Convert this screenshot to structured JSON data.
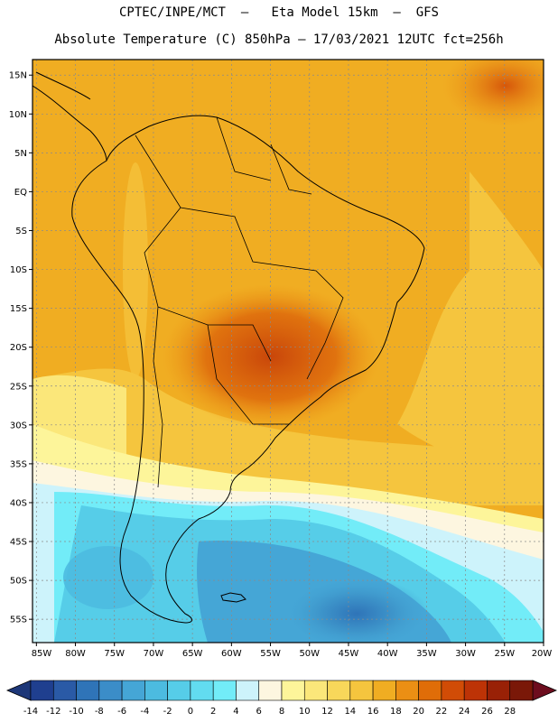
{
  "header": {
    "line1": "CPTEC/INPE/MCT  –   Eta Model 15km  –  GFS",
    "line2": "Absolute Temperature (C) 850hPa – 17/03/2021 12UTC fct=256h"
  },
  "map": {
    "lat_labels": [
      "15N",
      "10N",
      "5N",
      "EQ",
      "5S",
      "10S",
      "15S",
      "20S",
      "25S",
      "30S",
      "35S",
      "40S",
      "45S",
      "50S",
      "55S"
    ],
    "lat_values": [
      15,
      10,
      5,
      0,
      -5,
      -10,
      -15,
      -20,
      -25,
      -30,
      -35,
      -40,
      -45,
      -50,
      -55
    ],
    "lon_labels": [
      "85W",
      "80W",
      "75W",
      "70W",
      "65W",
      "60W",
      "55W",
      "50W",
      "45W",
      "40W",
      "35W",
      "30W",
      "25W",
      "20W"
    ],
    "lon_values": [
      -85,
      -80,
      -75,
      -70,
      -65,
      -60,
      -55,
      -50,
      -45,
      -40,
      -35,
      -30,
      -25,
      -20
    ],
    "lat_range": [
      -58,
      17
    ],
    "lon_range": [
      -85.5,
      -20
    ],
    "region": "South America"
  },
  "colorbar": {
    "labels": [
      "-14",
      "-12",
      "-10",
      "-8",
      "-6",
      "-4",
      "-2",
      "0",
      "2",
      "4",
      "6",
      "8",
      "10",
      "12",
      "14",
      "16",
      "18",
      "20",
      "22",
      "24",
      "26",
      "28"
    ],
    "colors": [
      "#1f3f8f",
      "#2a5aa6",
      "#2f74b8",
      "#3b8dc8",
      "#45a6d6",
      "#4cbbe0",
      "#56cde8",
      "#62dcf0",
      "#72ecf8",
      "#cdf3fb",
      "#fdf6e0",
      "#fdf59a",
      "#fbe77a",
      "#f8d75a",
      "#f5c53e",
      "#f0ad22",
      "#eb8f14",
      "#e06d08",
      "#d14c06",
      "#bd3306",
      "#992106",
      "#7a1808"
    ],
    "under_color": "#1d3778",
    "over_color": "#6d0d1e"
  }
}
